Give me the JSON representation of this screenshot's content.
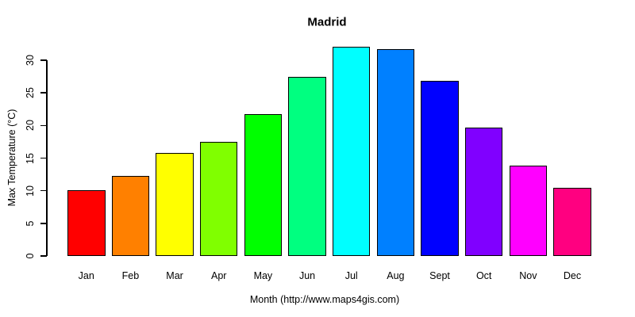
{
  "chart_data": {
    "type": "bar",
    "title": "Madrid",
    "xlabel": "Month (http://www.maps4gis.com)",
    "ylabel": "Max Temperature (°C)",
    "categories": [
      "Jan",
      "Feb",
      "Mar",
      "Apr",
      "May",
      "Jun",
      "Jul",
      "Aug",
      "Sept",
      "Oct",
      "Nov",
      "Dec"
    ],
    "values": [
      10.1,
      12.3,
      15.8,
      17.5,
      21.8,
      27.5,
      32.1,
      31.7,
      26.9,
      19.7,
      13.9,
      10.4
    ],
    "bar_colors": [
      "#FF0000",
      "#FF8000",
      "#FFFF00",
      "#80FF00",
      "#00FF00",
      "#00FF80",
      "#00FFFF",
      "#0080FF",
      "#0000FF",
      "#8000FF",
      "#FF00FF",
      "#FF0080"
    ],
    "bar_border_color": "#000000",
    "background_color": "#FFFFFF",
    "ylim": [
      0,
      30
    ],
    "yticks": [
      0,
      5,
      10,
      15,
      20,
      25,
      30
    ],
    "grid": false,
    "legend_position": "none"
  }
}
